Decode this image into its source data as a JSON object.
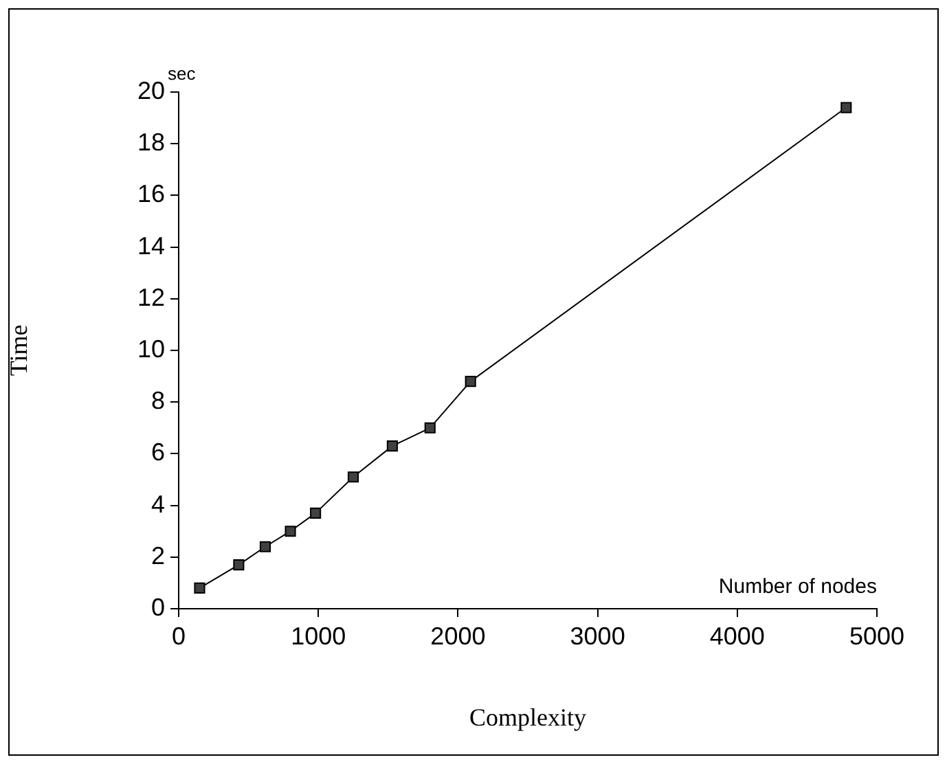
{
  "chart_data": {
    "type": "line",
    "xlabel": "Complexity",
    "ylabel": "Time",
    "annotations": [
      "sec",
      "Number of nodes"
    ],
    "x": [
      150,
      430,
      620,
      800,
      980,
      1250,
      1530,
      1800,
      2090,
      4780
    ],
    "series": [
      {
        "color": "#404040",
        "values": [
          0.8,
          1.7,
          2.4,
          3.0,
          3.7,
          5.1,
          6.3,
          7.0,
          8.8,
          19.4
        ]
      }
    ],
    "xlim": [
      0,
      5000
    ],
    "xticks": [
      0,
      1000,
      2000,
      3000,
      4000,
      5000
    ],
    "ylim": [
      0,
      20
    ],
    "yticks": [
      0,
      2,
      4,
      6,
      8,
      10,
      12,
      14,
      16,
      18,
      20
    ],
    "marker": "square",
    "legend": false
  }
}
